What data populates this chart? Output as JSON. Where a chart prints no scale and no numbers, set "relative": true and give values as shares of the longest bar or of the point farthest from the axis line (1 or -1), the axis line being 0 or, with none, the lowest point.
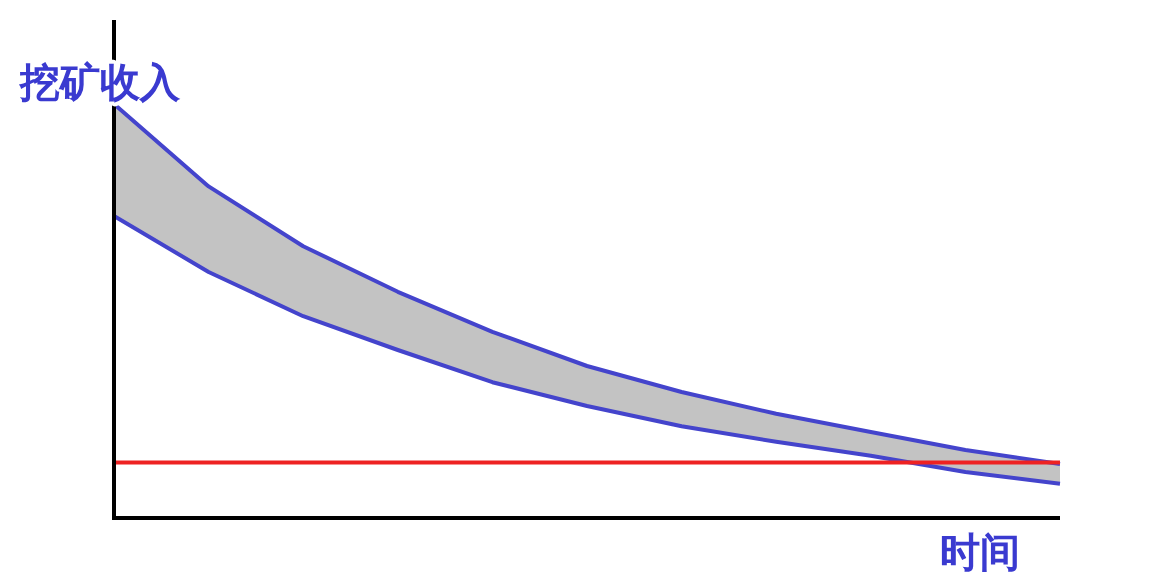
{
  "chart_data": {
    "type": "line",
    "relative": true,
    "xlabel": "时间",
    "ylabel": "挖矿收入",
    "categories": [
      null,
      null,
      null,
      null,
      null,
      null,
      null,
      null,
      null,
      null,
      null
    ],
    "series": [
      {
        "color": "#4444cc",
        "values": [
          1,
          0.8,
          0.655,
          0.544,
          0.447,
          0.364,
          0.301,
          0.248,
          0.204,
          0.16,
          0.126
        ],
        "lower": [
          0.728,
          0.592,
          0.485,
          0.403,
          0.325,
          0.267,
          0.218,
          0.18,
          0.146,
          0.107,
          0.078
        ],
        "upper": [
          1,
          0.8,
          0.655,
          0.544,
          0.447,
          0.364,
          0.301,
          0.248,
          0.204,
          0.16,
          0.126
        ]
      },
      {
        "color": "#4444cc",
        "values": [
          0.728,
          0.592,
          0.485,
          0.403,
          0.325,
          0.267,
          0.218,
          0.18,
          0.146,
          0.107,
          0.078
        ]
      }
    ],
    "ref_lines": [
      {
        "axis": "y",
        "value": 0.13,
        "color": "#ee2222"
      }
    ]
  }
}
